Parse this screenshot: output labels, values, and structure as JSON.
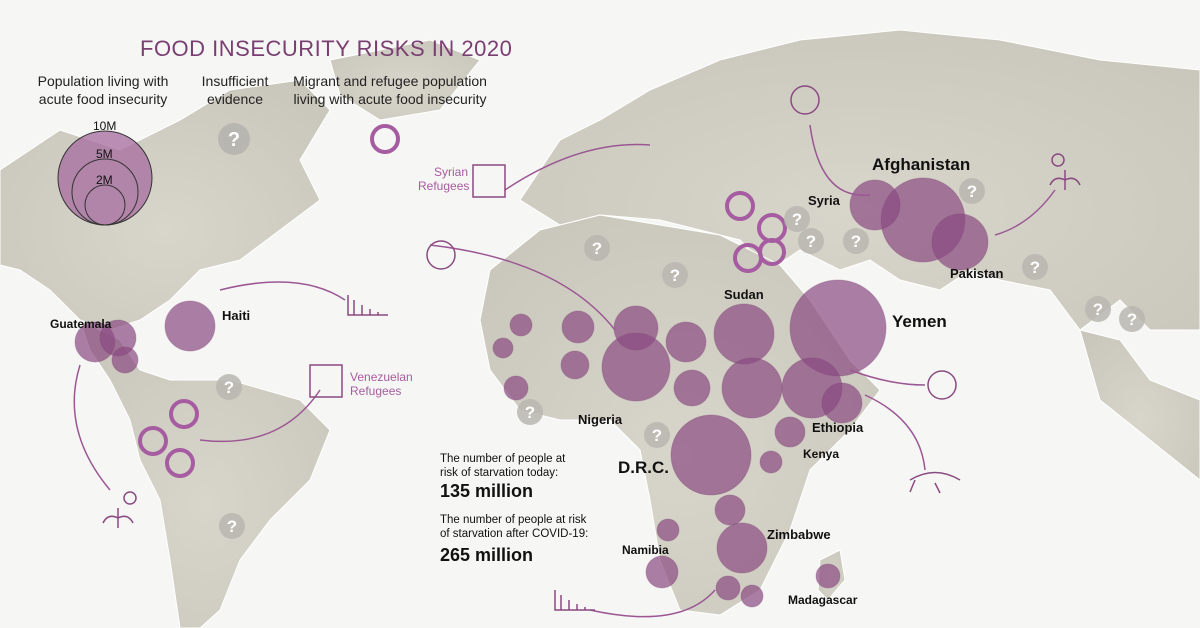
{
  "title": "FOOD INSECURITY RISKS IN 2020",
  "legend": {
    "population": "Population living with acute food insecurity",
    "population_l1": "Population living with",
    "population_l2": "acute food insecurity",
    "scale": [
      "10M",
      "5M",
      "2M"
    ],
    "insufficient_l1": "Insufficient",
    "insufficient_l2": "evidence",
    "migrant_l1": "Migrant and refugee population",
    "migrant_l2": "living with acute food insecurity"
  },
  "annotations": {
    "syrian_l1": "Syrian",
    "syrian_l2": "Refugees",
    "venezuelan_l1": "Venezuelan",
    "venezuelan_l2": "Refugees"
  },
  "countries": {
    "afghanistan": "Afghanistan",
    "syria": "Syria",
    "pakistan": "Pakistan",
    "yemen": "Yemen",
    "sudan": "Sudan",
    "ethiopia": "Ethiopia",
    "kenya": "Kenya",
    "nigeria": "Nigeria",
    "drc": "D.R.C.",
    "namibia": "Namibia",
    "zimbabwe": "Zimbabwe",
    "madagascar": "Madagascar",
    "haiti": "Haiti",
    "guatemala": "Guatemala"
  },
  "stats": {
    "today_l1": "The number of people at",
    "today_l2": "risk of starvation today:",
    "today_value": "135 million",
    "covid_l1": "The number of people at risk",
    "covid_l2": "of starvation after COVID-19:",
    "covid_value": "265 million"
  },
  "colors": {
    "circle": "#8a4a82",
    "ring": "#a65ca0",
    "land": "#d3d1c5",
    "unknown": "#b8b6b0",
    "title": "#7a3f72"
  }
}
